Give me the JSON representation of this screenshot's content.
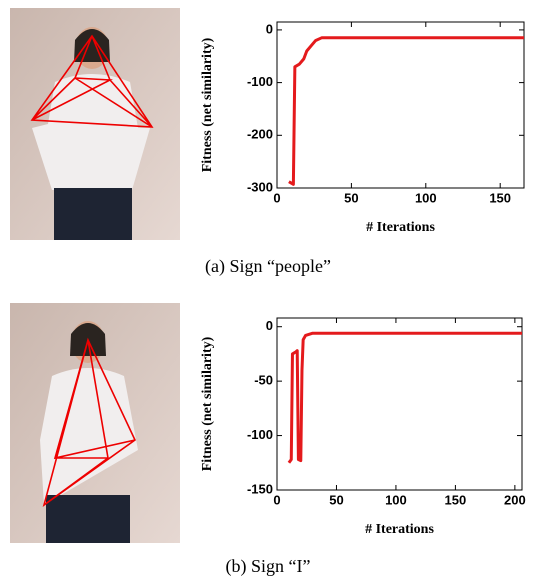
{
  "chart_data": [
    {
      "type": "line",
      "ylabel": "Fitness (net similarity)",
      "xlabel": "# Iterations",
      "caption": "(a) Sign “people”",
      "x": [
        8,
        11,
        12,
        15,
        18,
        20,
        23,
        26,
        30,
        166
      ],
      "series": [
        {
          "color": "#e41a1c",
          "values": [
            -288,
            -293,
            -70,
            -65,
            -55,
            -40,
            -30,
            -20,
            -15,
            -15
          ]
        }
      ],
      "xlim": [
        0,
        166
      ],
      "xticks": [
        0,
        50,
        100,
        150
      ],
      "ylim": [
        -300,
        15
      ],
      "yticks": [
        -300,
        -200,
        -100,
        0
      ]
    },
    {
      "type": "line",
      "ylabel": "Fitness (net similarity)",
      "xlabel": "# Iterations",
      "caption": "(b) Sign “I”",
      "x": [
        10,
        12,
        13,
        16,
        17,
        18,
        20,
        21,
        22,
        24,
        30,
        206
      ],
      "series": [
        {
          "color": "#e41a1c",
          "values": [
            -125,
            -122,
            -25,
            -23,
            -22,
            -122,
            -123,
            -40,
            -12,
            -8,
            -6,
            -6
          ]
        }
      ],
      "xlim": [
        0,
        206
      ],
      "xticks": [
        0,
        50,
        100,
        150,
        200
      ],
      "ylim": [
        -150,
        8
      ],
      "yticks": [
        -150,
        -100,
        -50,
        0
      ]
    }
  ]
}
